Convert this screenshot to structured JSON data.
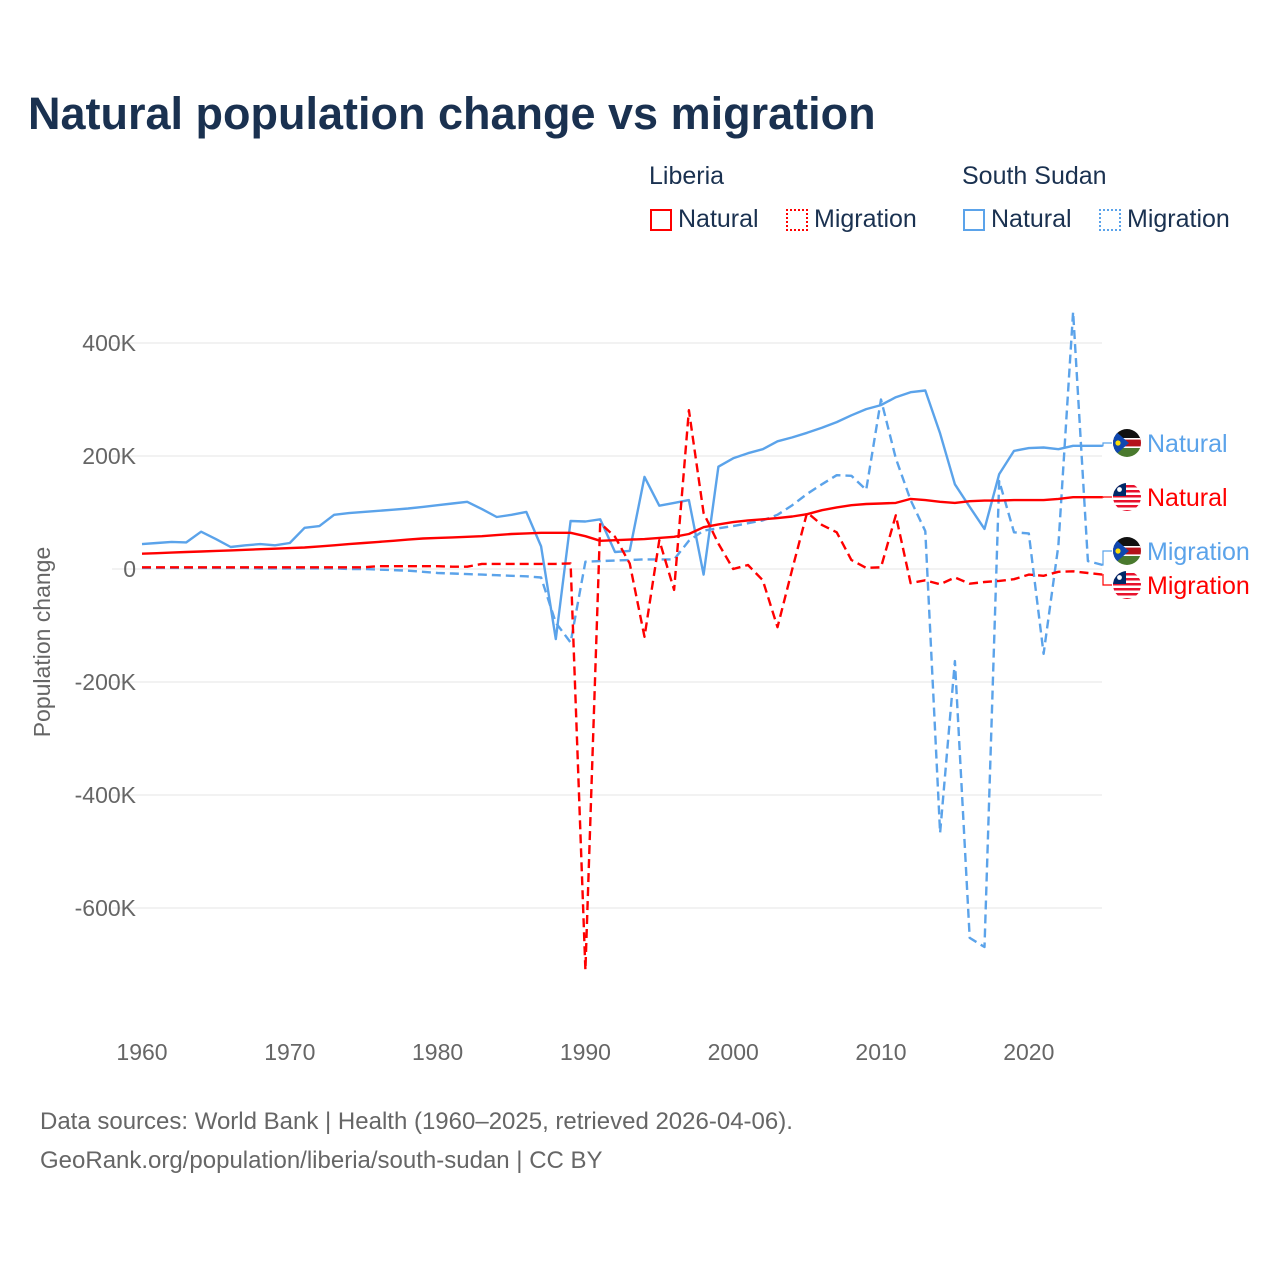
{
  "chart_data": {
    "type": "line",
    "title": "Natural population change vs migration",
    "xlabel": "",
    "ylabel": "Population change",
    "xlim": [
      1960,
      2025
    ],
    "ylim": [
      -750000,
      480000
    ],
    "x_ticks": [
      1960,
      1970,
      1980,
      1990,
      2000,
      2010,
      2020
    ],
    "x_tick_labels": [
      "1960",
      "1970",
      "1980",
      "1990",
      "2000",
      "2010",
      "2020"
    ],
    "y_ticks": [
      400000,
      200000,
      0,
      -200000,
      -400000,
      -600000
    ],
    "y_tick_labels": [
      "400K",
      "200K",
      "0",
      "-200K",
      "-400K",
      "-600K"
    ],
    "grid": true,
    "legend_placement": "top-right",
    "legend_groups": [
      {
        "country": "Liberia",
        "items": [
          "Natural",
          "Migration"
        ]
      },
      {
        "country": "South Sudan",
        "items": [
          "Natural",
          "Migration"
        ]
      }
    ],
    "years": [
      1960,
      1961,
      1962,
      1963,
      1964,
      1965,
      1966,
      1967,
      1968,
      1969,
      1970,
      1971,
      1972,
      1973,
      1974,
      1975,
      1976,
      1977,
      1978,
      1979,
      1980,
      1981,
      1982,
      1983,
      1984,
      1985,
      1986,
      1987,
      1988,
      1989,
      1990,
      1991,
      1992,
      1993,
      1994,
      1995,
      1996,
      1997,
      1998,
      1999,
      2000,
      2001,
      2002,
      2003,
      2004,
      2005,
      2006,
      2007,
      2008,
      2009,
      2010,
      2011,
      2012,
      2013,
      2014,
      2015,
      2016,
      2017,
      2018,
      2019,
      2020,
      2021,
      2022,
      2023,
      2024,
      2025
    ],
    "series": [
      {
        "name": "Natural",
        "country": "Liberia",
        "color": "#ff0000",
        "dash": false,
        "values": [
          27,
          28,
          29,
          30,
          31,
          32,
          33,
          34,
          35,
          36,
          37,
          38,
          40,
          42,
          44,
          46,
          48,
          50,
          52,
          54,
          55,
          56,
          57,
          58,
          60,
          62,
          63,
          64,
          64,
          64,
          58,
          50,
          51,
          52,
          53,
          55,
          57,
          62,
          74,
          79,
          83,
          86,
          88,
          90,
          93,
          97,
          104,
          109,
          113,
          115,
          116,
          117,
          124,
          122,
          119,
          117,
          120,
          121,
          121,
          122,
          122,
          122,
          124,
          127,
          127,
          127
        ]
      },
      {
        "name": "Migration",
        "country": "Liberia",
        "color": "#ff0000",
        "dash": true,
        "values": [
          3,
          3,
          3,
          3,
          3,
          3,
          3,
          3,
          3,
          3,
          3,
          3,
          3,
          3,
          3,
          3,
          5,
          5,
          5,
          5,
          5,
          4,
          4,
          9,
          9,
          9,
          9,
          9,
          9,
          10,
          -710,
          81,
          57,
          10,
          -120,
          51,
          -37,
          281,
          99,
          45,
          0,
          7,
          -20,
          -103,
          0,
          100,
          78,
          65,
          16,
          2,
          3,
          95,
          -25,
          -20,
          -27,
          -15,
          -26,
          -23,
          -21,
          -18,
          -10,
          -12,
          -5,
          -4,
          -7,
          -10
        ]
      },
      {
        "name": "Natural",
        "country": "South Sudan",
        "color": "#5ba3ea",
        "dash": false,
        "values": [
          44,
          46,
          48,
          47,
          66,
          53,
          39,
          42,
          44,
          42,
          46,
          73,
          76,
          96,
          99,
          101,
          103,
          105,
          107,
          110,
          113,
          116,
          119,
          106,
          92,
          96,
          101,
          40,
          -124,
          85,
          84,
          88,
          30,
          32,
          163,
          112,
          117,
          122,
          -10,
          181,
          196,
          205,
          212,
          226,
          233,
          241,
          250,
          260,
          272,
          283,
          290,
          304,
          313,
          316,
          240,
          150,
          110,
          71,
          168,
          209,
          214,
          215,
          212,
          218,
          218,
          218
        ]
      },
      {
        "name": "Migration",
        "country": "South Sudan",
        "color": "#5ba3ea",
        "dash": true,
        "values": [
          2,
          2,
          2,
          2,
          2,
          2,
          2,
          2,
          1,
          1,
          1,
          1,
          1,
          1,
          0,
          0,
          -1,
          -2,
          -3,
          -5,
          -7,
          -8,
          -9,
          -10,
          -11,
          -12,
          -13,
          -15,
          -95,
          -130,
          13,
          14,
          15,
          16,
          17,
          17,
          17,
          50,
          68,
          72,
          76,
          81,
          86,
          96,
          113,
          133,
          150,
          166,
          165,
          140,
          300,
          196,
          122,
          67,
          -467,
          -163,
          -653,
          -669,
          156,
          65,
          63,
          -150,
          42,
          455,
          14,
          7
        ]
      }
    ],
    "value_unit": "thousands"
  },
  "footer": {
    "line1": "Data sources: World Bank | Health (1960–2025, retrieved 2026-04-06).",
    "line2": "GeoRank.org/population/liberia/south-sudan | CC BY"
  }
}
